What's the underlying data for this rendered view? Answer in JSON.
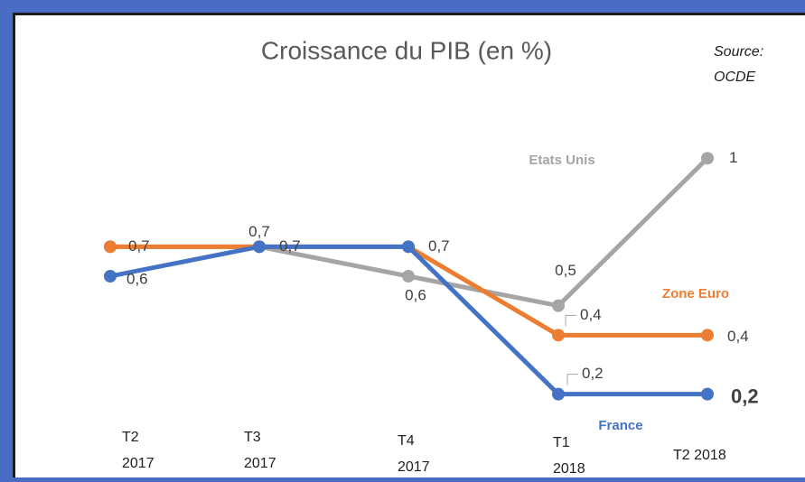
{
  "chart_data": {
    "type": "line",
    "title": "Croissance du PIB (en %)",
    "source": "Source: OCDE",
    "categories": [
      "T2 2017",
      "T3 2017",
      "T4 2017",
      "T1 2018",
      "T2 2018"
    ],
    "ylim": [
      0,
      1.2
    ],
    "series": [
      {
        "name": "France",
        "color": "#4472c4",
        "values": [
          0.6,
          0.7,
          0.7,
          0.2,
          0.2
        ],
        "value_labels": [
          "0,6",
          null,
          null,
          "0,2",
          "0,2"
        ]
      },
      {
        "name": "Zone Euro",
        "color": "#ed7d31",
        "values": [
          0.7,
          0.7,
          0.7,
          0.4,
          0.4
        ],
        "value_labels": [
          "0,7",
          "0,7",
          "0,7",
          "0,4",
          "0,4"
        ]
      },
      {
        "name": "Etats Unis",
        "color": "#a5a5a5",
        "values": [
          0.7,
          0.7,
          0.6,
          0.5,
          1
        ],
        "value_labels": [
          null,
          "0,7",
          "0,6",
          "0,5",
          "1"
        ]
      }
    ]
  }
}
